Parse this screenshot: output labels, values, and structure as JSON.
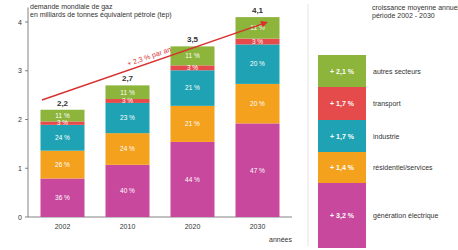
{
  "chart_data": {
    "type": "bar",
    "stacked": true,
    "data_labels": true,
    "grid": false,
    "y_label": [
      "demande mondiale de gaz",
      "en milliards de tonnes équivalent pétrole (tep)"
    ],
    "x_label": "années",
    "annotation": "+ 2,3 % par an",
    "categories": [
      "2002",
      "2010",
      "2020",
      "2030"
    ],
    "ylim": [
      0,
      4.3
    ],
    "yticks": [
      0,
      1,
      2,
      3,
      4
    ],
    "totals": [
      2.2,
      2.7,
      3.5,
      4.1
    ],
    "total_labels": [
      "2,2",
      "2,7",
      "3,5",
      "4,1"
    ],
    "growth_title": [
      "croissance moyenne annuelle",
      "période 2002 - 2030"
    ],
    "series": [
      {
        "name": "génération électrique",
        "color": "#c8489d",
        "values": [
          0.79,
          1.07,
          1.54,
          1.92
        ],
        "shares": [
          36,
          40,
          44,
          47
        ],
        "share_labels": [
          "36 %",
          "40 %",
          "44 %",
          "47 %"
        ],
        "growth": 3.2,
        "growth_label": "+ 3,2 %"
      },
      {
        "name": "résidentiel/services",
        "color": "#f4a11e",
        "values": [
          0.57,
          0.65,
          0.74,
          0.81
        ],
        "shares": [
          26,
          24,
          21,
          20
        ],
        "share_labels": [
          "26 %",
          "24 %",
          "21 %",
          "20 %"
        ],
        "growth": 1.4,
        "growth_label": "+ 1,4 %"
      },
      {
        "name": "industrie",
        "color": "#1fa3b4",
        "values": [
          0.53,
          0.62,
          0.73,
          0.81
        ],
        "shares": [
          24,
          23,
          21,
          20
        ],
        "share_labels": [
          "24 %",
          "23 %",
          "21 %",
          "20 %"
        ],
        "growth": 1.7,
        "growth_label": "+ 1,7 %"
      },
      {
        "name": "transport",
        "color": "#e64b4b",
        "values": [
          0.07,
          0.08,
          0.1,
          0.12
        ],
        "shares": [
          3,
          3,
          3,
          3
        ],
        "share_labels": [
          "3 %",
          "3 %",
          "3 %",
          "3 %"
        ],
        "growth": 1.7,
        "growth_label": "+ 1,7 %"
      },
      {
        "name": "autres secteurs",
        "color": "#8db43b",
        "values": [
          0.24,
          0.28,
          0.39,
          0.44
        ],
        "shares": [
          11,
          11,
          11,
          11
        ],
        "share_labels": [
          "11 %",
          "11 %",
          "11 %",
          "11 %"
        ],
        "growth": 2.1,
        "growth_label": "+ 2,1 %"
      }
    ]
  }
}
